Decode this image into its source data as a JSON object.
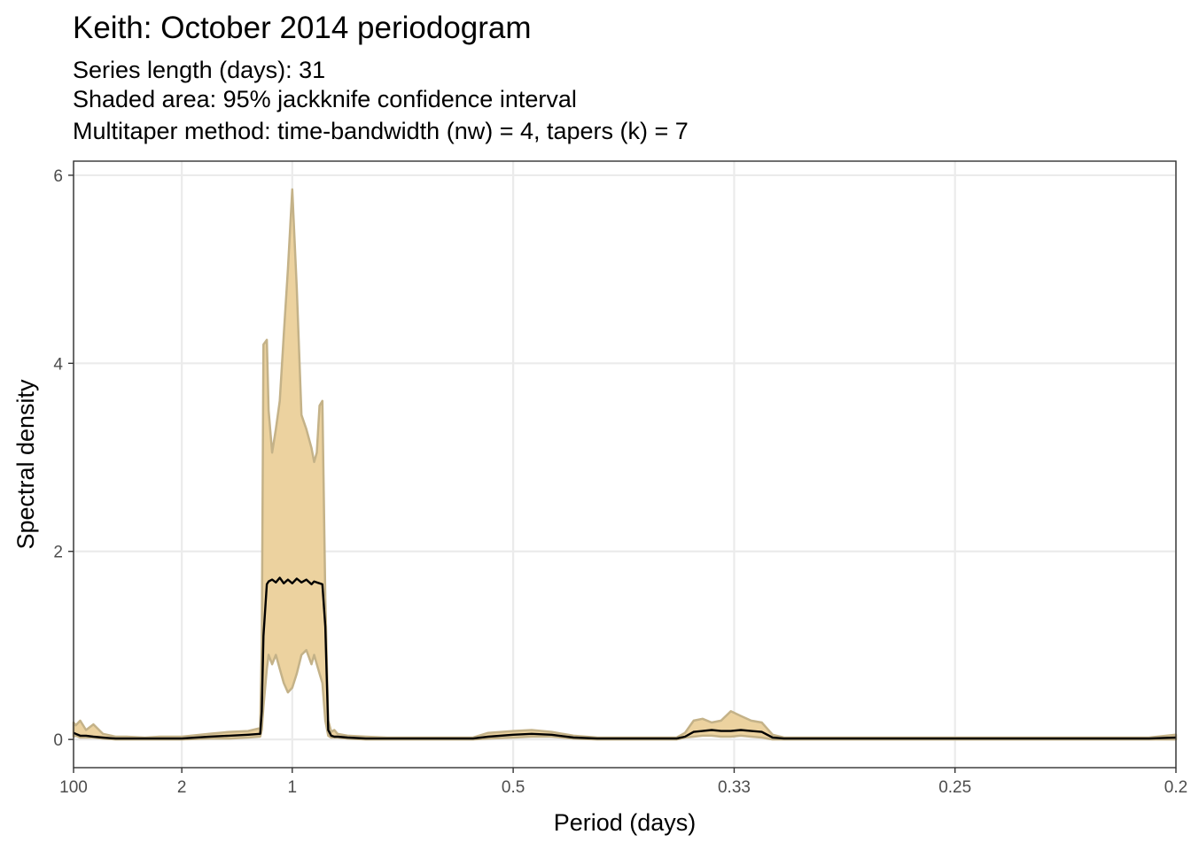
{
  "chart_data": {
    "type": "area",
    "title": "Keith: October 2014 periodogram",
    "subtitle": [
      "Series length (days): 31",
      "Shaded area: 95% jackknife confidence interval",
      "Multitaper method: time-bandwidth (nw) = 4, tapers (k) = 7"
    ],
    "xlabel": "Period (days)",
    "ylabel": "Spectral density",
    "x_scale": "reciprocal (frequency = 1/period)",
    "x_ticks": [
      {
        "label": "100",
        "period": 100
      },
      {
        "label": "2",
        "period": 2
      },
      {
        "label": "1",
        "period": 1
      },
      {
        "label": "0.5",
        "period": 0.5
      },
      {
        "label": "0.33",
        "period": 0.3333
      },
      {
        "label": "0.25",
        "period": 0.25
      },
      {
        "label": "0.2",
        "period": 0.2
      }
    ],
    "y_ticks": [
      0,
      2,
      4,
      6
    ],
    "ylim": [
      -0.3,
      6.15
    ],
    "grid": true,
    "colors": {
      "band_fill": "#ecd29f",
      "band_edge": "#c4b288",
      "line": "#000000",
      "grid": "#ebebeb"
    },
    "series": [
      {
        "name": "",
        "period": [
          100,
          50,
          25,
          15,
          10,
          7,
          5,
          4,
          3,
          2.5,
          2,
          1.6,
          1.4,
          1.25,
          1.17,
          1.16,
          1.15,
          1.13,
          1.12,
          1.1,
          1.08,
          1.06,
          1.04,
          1.02,
          1.0,
          0.98,
          0.96,
          0.94,
          0.92,
          0.91,
          0.9,
          0.89,
          0.88,
          0.87,
          0.86,
          0.85,
          0.84,
          0.83,
          0.8,
          0.75,
          0.7,
          0.65,
          0.6,
          0.55,
          0.53,
          0.5,
          0.48,
          0.46,
          0.44,
          0.42,
          0.4,
          0.38,
          0.365,
          0.36,
          0.355,
          0.35,
          0.345,
          0.34,
          0.335,
          0.33,
          0.325,
          0.32,
          0.315,
          0.31,
          0.305,
          0.3,
          0.28,
          0.26,
          0.25,
          0.24,
          0.22,
          0.205,
          0.2
        ],
        "lower": [
          0.03,
          0.04,
          0.02,
          0.02,
          0.02,
          0.01,
          0.0,
          0.0,
          0.0,
          0.0,
          0.0,
          0.01,
          0.01,
          0.02,
          0.03,
          0.1,
          0.35,
          0.75,
          0.9,
          0.8,
          0.9,
          0.75,
          0.6,
          0.5,
          0.55,
          0.7,
          0.9,
          0.95,
          0.8,
          0.9,
          0.8,
          0.7,
          0.6,
          0.2,
          0.04,
          0.02,
          0.02,
          0.02,
          0.01,
          0.0,
          0.0,
          0.0,
          0.0,
          0.0,
          0.01,
          0.02,
          0.03,
          0.03,
          0.01,
          0.0,
          0.0,
          0.0,
          0.0,
          0.02,
          0.03,
          0.04,
          0.04,
          0.03,
          0.03,
          0.04,
          0.03,
          0.02,
          0.0,
          0.0,
          0.0,
          0.0,
          0.0,
          0.0,
          0.0,
          0.0,
          0.0,
          0.0,
          0.0
        ],
        "mean": [
          0.07,
          0.06,
          0.04,
          0.04,
          0.03,
          0.02,
          0.01,
          0.01,
          0.01,
          0.01,
          0.01,
          0.03,
          0.04,
          0.05,
          0.06,
          0.3,
          1.1,
          1.65,
          1.68,
          1.7,
          1.67,
          1.72,
          1.66,
          1.7,
          1.66,
          1.71,
          1.67,
          1.7,
          1.65,
          1.68,
          1.67,
          1.66,
          1.65,
          1.2,
          0.1,
          0.04,
          0.03,
          0.03,
          0.02,
          0.01,
          0.01,
          0.01,
          0.01,
          0.01,
          0.03,
          0.05,
          0.06,
          0.05,
          0.02,
          0.01,
          0.01,
          0.01,
          0.01,
          0.03,
          0.08,
          0.09,
          0.1,
          0.09,
          0.09,
          0.1,
          0.09,
          0.08,
          0.02,
          0.01,
          0.01,
          0.01,
          0.01,
          0.01,
          0.01,
          0.01,
          0.01,
          0.01,
          0.02
        ],
        "upper": [
          0.18,
          0.15,
          0.2,
          0.1,
          0.16,
          0.06,
          0.03,
          0.03,
          0.02,
          0.03,
          0.03,
          0.06,
          0.08,
          0.09,
          0.12,
          1.0,
          4.2,
          4.25,
          3.5,
          3.05,
          3.3,
          3.6,
          4.3,
          5.0,
          5.85,
          4.8,
          3.45,
          3.3,
          3.1,
          2.95,
          3.05,
          3.55,
          3.6,
          1.5,
          0.2,
          0.08,
          0.1,
          0.06,
          0.04,
          0.03,
          0.02,
          0.02,
          0.02,
          0.02,
          0.07,
          0.09,
          0.1,
          0.08,
          0.04,
          0.02,
          0.02,
          0.02,
          0.02,
          0.07,
          0.2,
          0.22,
          0.18,
          0.2,
          0.3,
          0.25,
          0.2,
          0.18,
          0.05,
          0.02,
          0.02,
          0.02,
          0.02,
          0.02,
          0.02,
          0.02,
          0.02,
          0.02,
          0.05
        ]
      }
    ]
  }
}
